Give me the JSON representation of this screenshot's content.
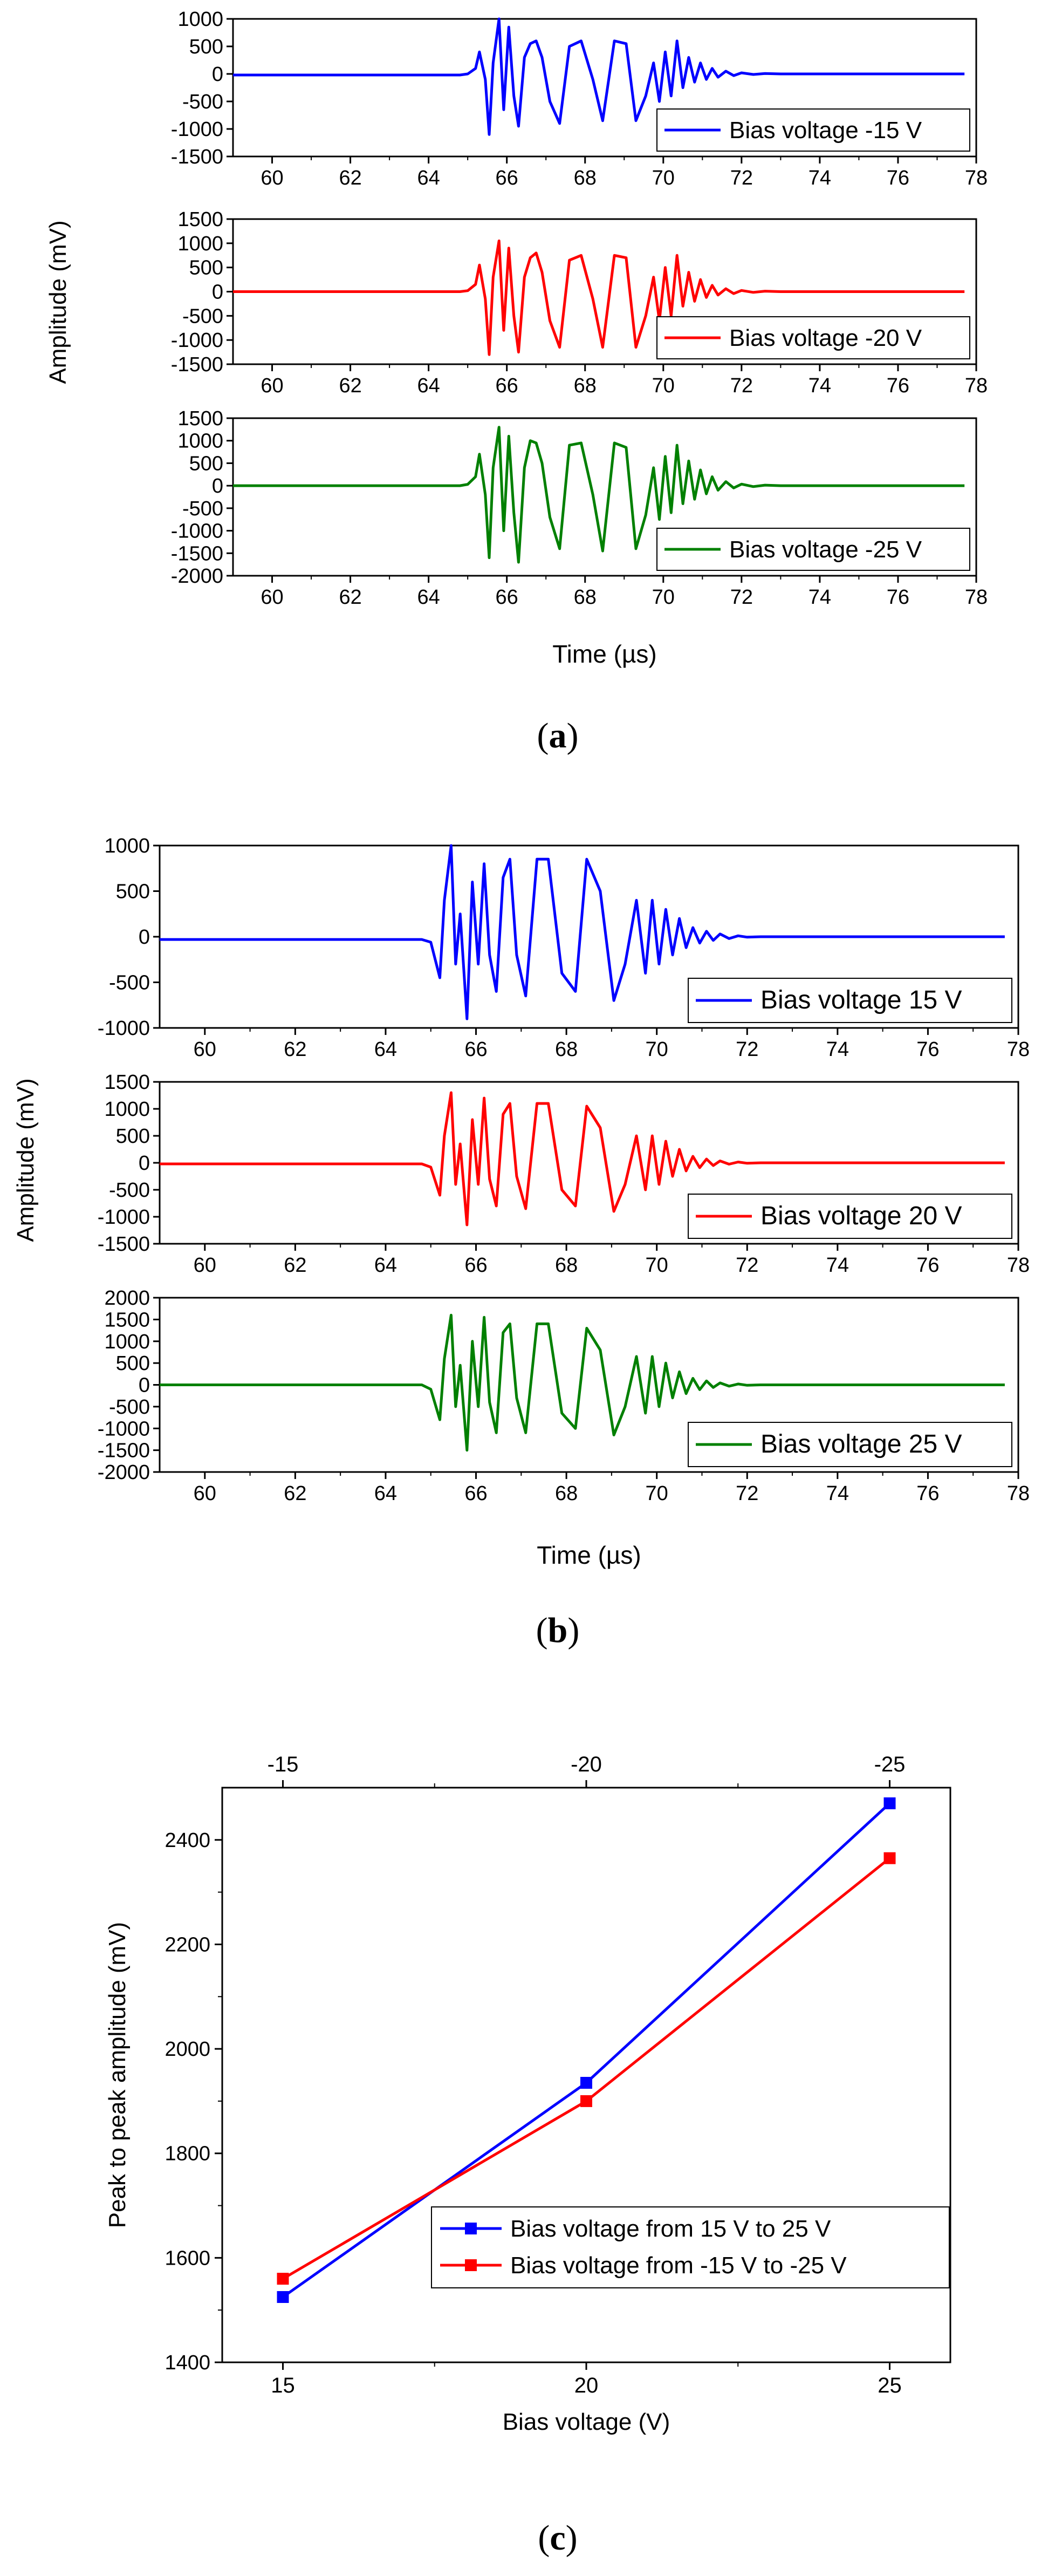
{
  "chart_data": [
    {
      "id": "a",
      "type": "line",
      "caption_letter": "a",
      "ylabel": "Amplitude (mV)",
      "xlabel": "Time (µs)",
      "xlim": [
        59,
        78
      ],
      "xticks": [
        60,
        62,
        64,
        66,
        68,
        70,
        72,
        74,
        76,
        78
      ],
      "subplots": [
        {
          "series_name": "Bias voltage -15 V",
          "color": "#0000ff",
          "ylim": [
            -1500,
            1000
          ],
          "yticks": [
            1000,
            500,
            0,
            -500,
            -1000,
            -1500
          ],
          "x": [
            59,
            64.8,
            65.0,
            65.2,
            65.3,
            65.45,
            65.55,
            65.65,
            65.8,
            65.92,
            66.05,
            66.18,
            66.3,
            66.45,
            66.6,
            66.75,
            66.9,
            67.1,
            67.35,
            67.6,
            67.9,
            68.2,
            68.45,
            68.75,
            69.05,
            69.3,
            69.55,
            69.75,
            69.9,
            70.05,
            70.2,
            70.35,
            70.5,
            70.65,
            70.8,
            70.95,
            71.1,
            71.25,
            71.4,
            71.6,
            71.8,
            72.0,
            72.3,
            72.6,
            73.0,
            77.7
          ],
          "y": [
            -20,
            -20,
            0,
            100,
            400,
            -100,
            -1100,
            200,
            1000,
            -650,
            850,
            -400,
            -950,
            300,
            550,
            600,
            300,
            -500,
            -900,
            500,
            600,
            -100,
            -850,
            600,
            550,
            -850,
            -400,
            200,
            -500,
            400,
            -400,
            600,
            -250,
            300,
            -150,
            200,
            -100,
            100,
            -60,
            50,
            -30,
            20,
            -10,
            8,
            0,
            0
          ]
        },
        {
          "series_name": "Bias voltage -20 V",
          "color": "#ff0000",
          "ylim": [
            -1500,
            1500
          ],
          "yticks": [
            1500,
            1000,
            500,
            0,
            -500,
            -1000,
            -1500
          ],
          "x": [
            59,
            64.8,
            65.0,
            65.2,
            65.3,
            65.45,
            65.55,
            65.65,
            65.8,
            65.92,
            66.05,
            66.18,
            66.3,
            66.45,
            66.6,
            66.75,
            66.9,
            67.1,
            67.35,
            67.6,
            67.9,
            68.2,
            68.45,
            68.75,
            69.05,
            69.3,
            69.55,
            69.75,
            69.9,
            70.05,
            70.2,
            70.35,
            70.5,
            70.65,
            70.8,
            70.95,
            71.1,
            71.25,
            71.4,
            71.6,
            71.8,
            72.0,
            72.3,
            72.6,
            73.0,
            77.7
          ],
          "y": [
            0,
            0,
            20,
            150,
            550,
            -150,
            -1300,
            300,
            1050,
            -800,
            900,
            -500,
            -1250,
            300,
            700,
            800,
            400,
            -600,
            -1150,
            650,
            750,
            -150,
            -1150,
            750,
            700,
            -1150,
            -500,
            300,
            -600,
            500,
            -500,
            750,
            -300,
            400,
            -200,
            250,
            -120,
            130,
            -70,
            60,
            -40,
            25,
            -15,
            10,
            0,
            0
          ]
        },
        {
          "series_name": "Bias voltage -25 V",
          "color": "#008000",
          "ylim": [
            -2000,
            1500
          ],
          "yticks": [
            1500,
            1000,
            500,
            0,
            -500,
            -1000,
            -1500,
            -2000
          ],
          "x": [
            59,
            64.8,
            65.0,
            65.2,
            65.3,
            65.45,
            65.55,
            65.65,
            65.8,
            65.92,
            66.05,
            66.18,
            66.3,
            66.45,
            66.6,
            66.75,
            66.9,
            67.1,
            67.35,
            67.6,
            67.9,
            68.2,
            68.45,
            68.75,
            69.05,
            69.3,
            69.55,
            69.75,
            69.9,
            70.05,
            70.2,
            70.35,
            70.5,
            70.65,
            70.8,
            70.95,
            71.1,
            71.25,
            71.4,
            71.6,
            71.8,
            72.0,
            72.3,
            72.6,
            73.0,
            77.7
          ],
          "y": [
            0,
            0,
            30,
            200,
            700,
            -200,
            -1600,
            400,
            1300,
            -1000,
            1100,
            -600,
            -1700,
            400,
            1000,
            950,
            500,
            -700,
            -1400,
            900,
            950,
            -200,
            -1450,
            950,
            850,
            -1400,
            -650,
            400,
            -750,
            650,
            -600,
            900,
            -400,
            550,
            -300,
            350,
            -180,
            200,
            -100,
            90,
            -50,
            35,
            -20,
            12,
            0,
            0
          ]
        }
      ]
    },
    {
      "id": "b",
      "type": "line",
      "caption_letter": "b",
      "ylabel": "Amplitude (mV)",
      "xlabel": "Time (µs)",
      "xlim": [
        59,
        78
      ],
      "xticks": [
        60,
        62,
        64,
        66,
        68,
        70,
        72,
        74,
        76,
        78
      ],
      "subplots": [
        {
          "series_name": "Bias voltage 15 V",
          "color": "#0000ff",
          "ylim": [
            -1000,
            1000
          ],
          "yticks": [
            1000,
            500,
            0,
            -500,
            -1000
          ],
          "x": [
            59,
            64.8,
            65.0,
            65.2,
            65.3,
            65.45,
            65.55,
            65.65,
            65.8,
            65.92,
            66.05,
            66.18,
            66.3,
            66.45,
            66.6,
            66.75,
            66.9,
            67.1,
            67.35,
            67.6,
            67.9,
            68.2,
            68.45,
            68.75,
            69.05,
            69.3,
            69.55,
            69.75,
            69.9,
            70.05,
            70.2,
            70.35,
            70.5,
            70.65,
            70.8,
            70.95,
            71.1,
            71.25,
            71.4,
            71.6,
            71.8,
            72.0,
            72.3,
            72.6,
            73.0,
            77.7
          ],
          "y": [
            -30,
            -30,
            -60,
            -450,
            400,
            1000,
            -300,
            250,
            -900,
            600,
            -300,
            800,
            -200,
            -600,
            650,
            850,
            -200,
            -650,
            850,
            850,
            -400,
            -600,
            850,
            500,
            -700,
            -300,
            400,
            -400,
            400,
            -300,
            300,
            -200,
            200,
            -120,
            100,
            -70,
            60,
            -40,
            30,
            -20,
            10,
            -5,
            0,
            0,
            0,
            0
          ]
        },
        {
          "series_name": "Bias voltage 20 V",
          "color": "#ff0000",
          "ylim": [
            -1500,
            1500
          ],
          "yticks": [
            1500,
            1000,
            500,
            0,
            -500,
            -1000,
            -1500
          ],
          "x": [
            59,
            64.8,
            65.0,
            65.2,
            65.3,
            65.45,
            65.55,
            65.65,
            65.8,
            65.92,
            66.05,
            66.18,
            66.3,
            66.45,
            66.6,
            66.75,
            66.9,
            67.1,
            67.35,
            67.6,
            67.9,
            68.2,
            68.45,
            68.75,
            69.05,
            69.3,
            69.55,
            69.75,
            69.9,
            70.05,
            70.2,
            70.35,
            70.5,
            70.65,
            70.8,
            70.95,
            71.1,
            71.25,
            71.4,
            71.6,
            71.8,
            72.0,
            72.3,
            72.6,
            73.0,
            77.7
          ],
          "y": [
            -20,
            -20,
            -80,
            -600,
            500,
            1300,
            -400,
            350,
            -1150,
            800,
            -400,
            1200,
            -300,
            -800,
            900,
            1100,
            -250,
            -850,
            1100,
            1100,
            -500,
            -800,
            1050,
            650,
            -900,
            -400,
            500,
            -500,
            500,
            -400,
            400,
            -250,
            250,
            -150,
            120,
            -90,
            70,
            -50,
            35,
            -25,
            15,
            -8,
            0,
            0,
            0,
            0
          ]
        },
        {
          "series_name": "Bias voltage 25 V",
          "color": "#008000",
          "ylim": [
            -2000,
            2000
          ],
          "yticks": [
            2000,
            1500,
            1000,
            500,
            0,
            -500,
            -1000,
            -1500,
            -2000
          ],
          "x": [
            59,
            64.8,
            65.0,
            65.2,
            65.3,
            65.45,
            65.55,
            65.65,
            65.8,
            65.92,
            66.05,
            66.18,
            66.3,
            66.45,
            66.6,
            66.75,
            66.9,
            67.1,
            67.35,
            67.6,
            67.9,
            68.2,
            68.45,
            68.75,
            69.05,
            69.3,
            69.55,
            69.75,
            69.9,
            70.05,
            70.2,
            70.35,
            70.5,
            70.65,
            70.8,
            70.95,
            71.1,
            71.25,
            71.4,
            71.6,
            71.8,
            72.0,
            72.3,
            72.6,
            73.0,
            77.7
          ],
          "y": [
            0,
            0,
            -100,
            -800,
            600,
            1600,
            -500,
            450,
            -1500,
            1000,
            -500,
            1550,
            -400,
            -1100,
            1200,
            1400,
            -300,
            -1100,
            1400,
            1400,
            -650,
            -1000,
            1300,
            800,
            -1150,
            -500,
            650,
            -650,
            650,
            -500,
            500,
            -300,
            300,
            -200,
            150,
            -110,
            90,
            -60,
            45,
            -30,
            20,
            -10,
            0,
            0,
            0,
            0
          ]
        }
      ]
    },
    {
      "id": "c",
      "type": "line",
      "caption_letter": "c",
      "xlabel": "Bias voltage (V)",
      "ylabel": "Peak to peak amplitude (mV)",
      "xlim": [
        14,
        26
      ],
      "ylim": [
        1400,
        2500
      ],
      "xticks": [
        15,
        20,
        25
      ],
      "yticks": [
        1400,
        1600,
        1800,
        2000,
        2200,
        2400
      ],
      "top_xticks": [
        "-15",
        "-20",
        "-25"
      ],
      "legend_position": "bottom-right",
      "categories": [
        15,
        20,
        25
      ],
      "series": [
        {
          "name": "Bias voltage from 15 V to 25 V",
          "color": "#0000ff",
          "values": [
            1525,
            1935,
            2470
          ]
        },
        {
          "name": "Bias voltage from -15 V to -25 V",
          "color": "#ff0000",
          "values": [
            1560,
            1900,
            2365
          ]
        }
      ]
    }
  ]
}
